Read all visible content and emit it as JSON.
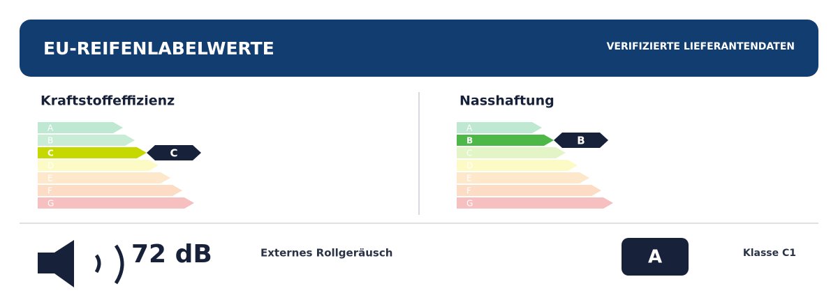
{
  "header": {
    "title": "EU-REIFENLABELWERTE",
    "badge": "VERIFIZIERTE LIEFERANTENDATEN"
  },
  "scales": [
    {
      "title": "Kraftstoffeffizienz",
      "classes": [
        "A",
        "B",
        "C",
        "D",
        "E",
        "F",
        "G"
      ],
      "rating": "C",
      "colors": [
        "#bfe8d2",
        "#c9ecd6",
        "#d8efc0",
        "#fdfbc5",
        "#fde8cc",
        "#fcdcc4",
        "#f7c0c0"
      ],
      "active_color": "#c5d900"
    },
    {
      "title": "Nasshaftung",
      "classes": [
        "A",
        "B",
        "C",
        "D",
        "E",
        "F",
        "G"
      ],
      "rating": "B",
      "colors": [
        "#bfe8d2",
        "#c9ecd6",
        "#e3f5c6",
        "#fdfbc5",
        "#fde8cc",
        "#fcdcc4",
        "#f7c0c0"
      ],
      "active_color": "#4db848"
    }
  ],
  "noise": {
    "value": "72 dB",
    "label": "Externes Rollgeräusch",
    "rating": "A",
    "tyre_class": "Klasse C1"
  }
}
